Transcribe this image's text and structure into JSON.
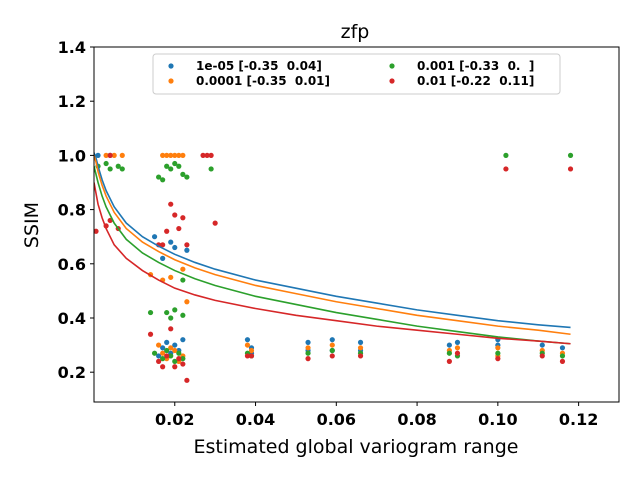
{
  "chart_data": {
    "type": "scatter",
    "title": "zfp",
    "xlabel": "Estimated global variogram range",
    "ylabel": "SSIM",
    "xlim": [
      0.0,
      0.13
    ],
    "ylim": [
      0.09,
      1.4
    ],
    "xticks": [
      0.02,
      0.04,
      0.06,
      0.08,
      0.1,
      0.12
    ],
    "xtick_labels": [
      "0.02",
      "0.04",
      "0.06",
      "0.08",
      "0.10",
      "0.12"
    ],
    "yticks": [
      0.2,
      0.4,
      0.6,
      0.8,
      1.0,
      1.2,
      1.4
    ],
    "ytick_labels": [
      "0.2",
      "0.4",
      "0.6",
      "0.8",
      "1.0",
      "1.2",
      "1.4"
    ],
    "grid": false,
    "legend_position": "top-center",
    "legend_columns": 2,
    "series": [
      {
        "name": "1e-05 [-0.35  0.04]",
        "color": "#1f77b4",
        "fit": {
          "x": [
            0.0,
            0.0005,
            0.001,
            0.002,
            0.003,
            0.005,
            0.008,
            0.012,
            0.016,
            0.02,
            0.025,
            0.03,
            0.04,
            0.05,
            0.06,
            0.07,
            0.08,
            0.09,
            0.1,
            0.11,
            0.118
          ],
          "y": [
            1.01,
            0.99,
            0.96,
            0.91,
            0.87,
            0.81,
            0.75,
            0.7,
            0.665,
            0.635,
            0.605,
            0.58,
            0.54,
            0.51,
            0.48,
            0.455,
            0.43,
            0.41,
            0.39,
            0.375,
            0.365
          ]
        },
        "points": [
          [
            0.001,
            1.0
          ],
          [
            0.004,
            1.0
          ],
          [
            0.015,
            0.7
          ],
          [
            0.017,
            0.62
          ],
          [
            0.019,
            0.68
          ],
          [
            0.02,
            0.66
          ],
          [
            0.023,
            0.65
          ],
          [
            0.017,
            0.29
          ],
          [
            0.018,
            0.31
          ],
          [
            0.019,
            0.27
          ],
          [
            0.02,
            0.3
          ],
          [
            0.021,
            0.28
          ],
          [
            0.022,
            0.32
          ],
          [
            0.016,
            0.26
          ],
          [
            0.038,
            0.32
          ],
          [
            0.039,
            0.29
          ],
          [
            0.039,
            0.27
          ],
          [
            0.053,
            0.31
          ],
          [
            0.053,
            0.28
          ],
          [
            0.059,
            0.32
          ],
          [
            0.059,
            0.28
          ],
          [
            0.066,
            0.31
          ],
          [
            0.066,
            0.28
          ],
          [
            0.088,
            0.3
          ],
          [
            0.09,
            0.31
          ],
          [
            0.1,
            0.3
          ],
          [
            0.1,
            0.32
          ],
          [
            0.111,
            0.3
          ],
          [
            0.116,
            0.29
          ]
        ]
      },
      {
        "name": "0.0001 [-0.35  0.01]",
        "color": "#ff7f0e",
        "fit": {
          "x": [
            0.0,
            0.0005,
            0.001,
            0.002,
            0.003,
            0.005,
            0.008,
            0.012,
            0.016,
            0.02,
            0.025,
            0.03,
            0.04,
            0.05,
            0.06,
            0.07,
            0.08,
            0.09,
            0.1,
            0.11,
            0.118
          ],
          "y": [
            1.0,
            0.975,
            0.94,
            0.89,
            0.85,
            0.79,
            0.73,
            0.68,
            0.645,
            0.615,
            0.585,
            0.56,
            0.52,
            0.49,
            0.46,
            0.435,
            0.41,
            0.39,
            0.37,
            0.355,
            0.34
          ]
        },
        "points": [
          [
            0.003,
            1.0
          ],
          [
            0.005,
            1.0
          ],
          [
            0.007,
            1.0
          ],
          [
            0.017,
            1.0
          ],
          [
            0.018,
            1.0
          ],
          [
            0.019,
            1.0
          ],
          [
            0.02,
            1.0
          ],
          [
            0.021,
            1.0
          ],
          [
            0.022,
            1.0
          ],
          [
            0.014,
            0.56
          ],
          [
            0.017,
            0.54
          ],
          [
            0.019,
            0.55
          ],
          [
            0.022,
            0.58
          ],
          [
            0.023,
            0.46
          ],
          [
            0.016,
            0.3
          ],
          [
            0.017,
            0.27
          ],
          [
            0.018,
            0.25
          ],
          [
            0.019,
            0.29
          ],
          [
            0.02,
            0.28
          ],
          [
            0.021,
            0.24
          ],
          [
            0.022,
            0.26
          ],
          [
            0.038,
            0.3
          ],
          [
            0.039,
            0.28
          ],
          [
            0.053,
            0.29
          ],
          [
            0.059,
            0.3
          ],
          [
            0.066,
            0.29
          ],
          [
            0.088,
            0.28
          ],
          [
            0.09,
            0.29
          ],
          [
            0.1,
            0.29
          ],
          [
            0.1,
            0.26
          ],
          [
            0.111,
            0.28
          ],
          [
            0.116,
            0.27
          ]
        ]
      },
      {
        "name": "0.001 [-0.33  0.  ]",
        "color": "#2ca02c",
        "fit": {
          "x": [
            0.0,
            0.0005,
            0.001,
            0.002,
            0.003,
            0.005,
            0.008,
            0.012,
            0.016,
            0.02,
            0.025,
            0.03,
            0.04,
            0.05,
            0.06,
            0.07,
            0.08,
            0.09,
            0.1,
            0.11,
            0.118
          ],
          "y": [
            0.96,
            0.93,
            0.9,
            0.85,
            0.81,
            0.75,
            0.69,
            0.64,
            0.605,
            0.575,
            0.545,
            0.52,
            0.48,
            0.45,
            0.42,
            0.395,
            0.37,
            0.35,
            0.33,
            0.315,
            0.305
          ]
        },
        "points": [
          [
            0.001,
            0.96
          ],
          [
            0.003,
            0.97
          ],
          [
            0.004,
            0.95
          ],
          [
            0.006,
            0.96
          ],
          [
            0.007,
            0.95
          ],
          [
            0.016,
            0.92
          ],
          [
            0.017,
            0.91
          ],
          [
            0.018,
            0.96
          ],
          [
            0.019,
            0.95
          ],
          [
            0.02,
            0.97
          ],
          [
            0.021,
            0.96
          ],
          [
            0.022,
            0.93
          ],
          [
            0.023,
            0.92
          ],
          [
            0.029,
            0.95
          ],
          [
            0.018,
            0.42
          ],
          [
            0.019,
            0.4
          ],
          [
            0.02,
            0.43
          ],
          [
            0.022,
            0.41
          ],
          [
            0.022,
            0.54
          ],
          [
            0.014,
            0.42
          ],
          [
            0.015,
            0.27
          ],
          [
            0.017,
            0.25
          ],
          [
            0.018,
            0.28
          ],
          [
            0.019,
            0.26
          ],
          [
            0.02,
            0.24
          ],
          [
            0.021,
            0.27
          ],
          [
            0.022,
            0.25
          ],
          [
            0.038,
            0.27
          ],
          [
            0.039,
            0.26
          ],
          [
            0.053,
            0.27
          ],
          [
            0.059,
            0.28
          ],
          [
            0.066,
            0.27
          ],
          [
            0.088,
            0.27
          ],
          [
            0.09,
            0.26
          ],
          [
            0.1,
            0.27
          ],
          [
            0.102,
            1.0
          ],
          [
            0.111,
            0.27
          ],
          [
            0.116,
            0.26
          ],
          [
            0.118,
            1.0
          ]
        ]
      },
      {
        "name": "0.01 [-0.22  0.11]",
        "color": "#d62728",
        "fit": {
          "x": [
            0.0,
            0.0005,
            0.001,
            0.002,
            0.003,
            0.005,
            0.008,
            0.012,
            0.016,
            0.02,
            0.025,
            0.03,
            0.04,
            0.05,
            0.06,
            0.07,
            0.08,
            0.09,
            0.1,
            0.11,
            0.118
          ],
          "y": [
            0.9,
            0.86,
            0.82,
            0.77,
            0.73,
            0.67,
            0.62,
            0.575,
            0.54,
            0.51,
            0.485,
            0.465,
            0.435,
            0.41,
            0.39,
            0.37,
            0.355,
            0.34,
            0.325,
            0.315,
            0.305
          ]
        },
        "points": [
          [
            0.0005,
            0.72
          ],
          [
            0.003,
            0.74
          ],
          [
            0.004,
            0.76
          ],
          [
            0.006,
            0.73
          ],
          [
            0.004,
            1.0
          ],
          [
            0.016,
            0.67
          ],
          [
            0.017,
            0.67
          ],
          [
            0.018,
            0.72
          ],
          [
            0.019,
            0.82
          ],
          [
            0.02,
            0.78
          ],
          [
            0.021,
            0.73
          ],
          [
            0.022,
            0.77
          ],
          [
            0.023,
            0.67
          ],
          [
            0.027,
            1.0
          ],
          [
            0.028,
            1.0
          ],
          [
            0.029,
            1.0
          ],
          [
            0.03,
            0.75
          ],
          [
            0.014,
            0.34
          ],
          [
            0.016,
            0.24
          ],
          [
            0.017,
            0.22
          ],
          [
            0.018,
            0.26
          ],
          [
            0.019,
            0.36
          ],
          [
            0.02,
            0.22
          ],
          [
            0.021,
            0.25
          ],
          [
            0.022,
            0.23
          ],
          [
            0.023,
            0.17
          ],
          [
            0.038,
            0.26
          ],
          [
            0.039,
            0.26
          ],
          [
            0.053,
            0.25
          ],
          [
            0.059,
            0.26
          ],
          [
            0.066,
            0.26
          ],
          [
            0.088,
            0.24
          ],
          [
            0.09,
            0.27
          ],
          [
            0.1,
            0.25
          ],
          [
            0.102,
            0.95
          ],
          [
            0.111,
            0.26
          ],
          [
            0.116,
            0.24
          ],
          [
            0.118,
            0.95
          ]
        ]
      }
    ]
  }
}
